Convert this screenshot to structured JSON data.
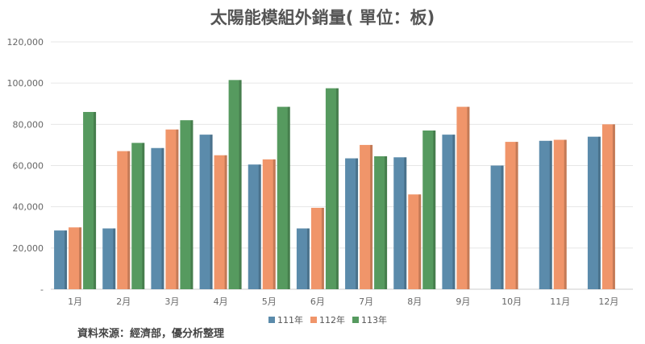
{
  "chart_data": {
    "type": "bar",
    "title": "太陽能模組外銷量( 單位：板)",
    "categories": [
      "1月",
      "2月",
      "3月",
      "4月",
      "5月",
      "6月",
      "7月",
      "8月",
      "9月",
      "10月",
      "11月",
      "12月"
    ],
    "series": [
      {
        "name": "111年",
        "color": "#5b8bab",
        "values": [
          28500,
          29500,
          68500,
          75000,
          60500,
          29500,
          63500,
          64000,
          75000,
          60000,
          72000,
          74000
        ]
      },
      {
        "name": "112年",
        "color": "#f0956a",
        "values": [
          30000,
          67000,
          77500,
          65000,
          63000,
          39500,
          70000,
          46000,
          88500,
          71500,
          72500,
          80000
        ]
      },
      {
        "name": "113年",
        "color": "#569a5f",
        "values": [
          86000,
          71000,
          82000,
          101500,
          88500,
          97500,
          64500,
          77000,
          null,
          null,
          null,
          null
        ]
      }
    ],
    "y_ticks": [
      "-",
      "20,000",
      "40,000",
      "60,000",
      "80,000",
      "100,000",
      "120,000"
    ],
    "ylim": [
      0,
      120000
    ],
    "grid": true,
    "legend_position": "bottom"
  },
  "source_note": "資料來源：經濟部，優分析整理"
}
